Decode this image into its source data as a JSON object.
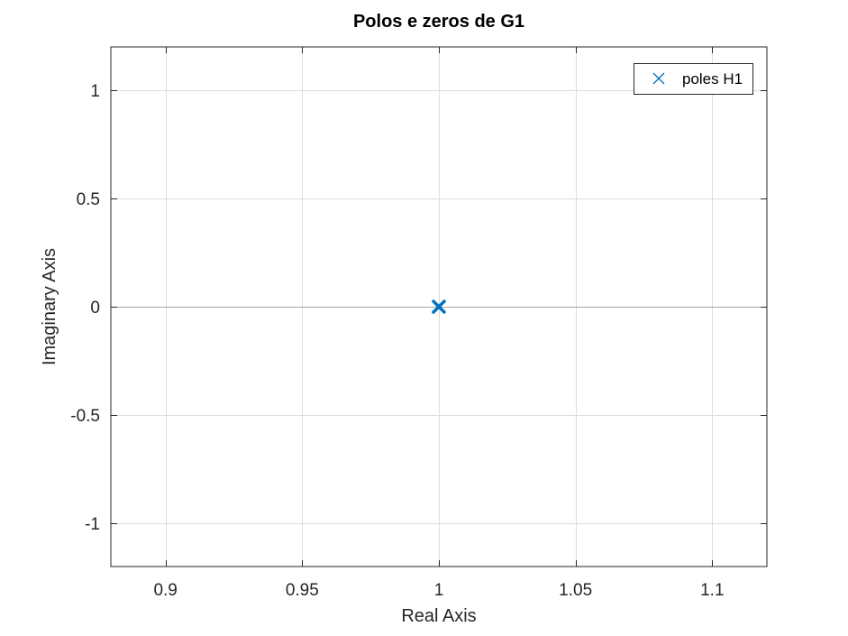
{
  "chart_data": {
    "type": "scatter",
    "title": "Polos e zeros de G1",
    "xlabel": "Real Axis",
    "ylabel": "Imaginary Axis",
    "xlim": [
      0.88,
      1.12
    ],
    "ylim": [
      -1.2,
      1.2
    ],
    "xticks": [
      0.9,
      0.95,
      1,
      1.05,
      1.1
    ],
    "xtick_labels": [
      "0.9",
      "0.95",
      "1",
      "1.05",
      "1.1"
    ],
    "yticks": [
      1,
      0.5,
      0,
      -0.5,
      -1
    ],
    "ytick_labels": [
      "1",
      "0.5",
      "0",
      "-0.5",
      "-1"
    ],
    "grid": true,
    "legend_position": "top-right",
    "series": [
      {
        "name": "poles H1",
        "marker": "x",
        "color": "#0072BD",
        "points": [
          {
            "x": 1,
            "y": 0
          }
        ]
      }
    ],
    "colors": {
      "axis": "#262626",
      "grid": "#dcdcdc",
      "zero_line": "#a6a6a6"
    }
  }
}
